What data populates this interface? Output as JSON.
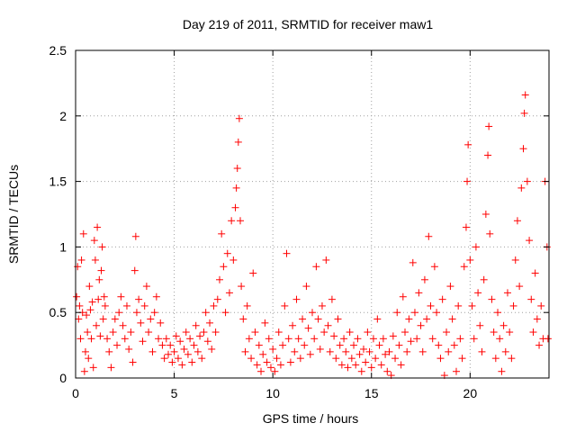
{
  "chart_data": {
    "type": "scatter",
    "title": "Day 219 of 2011, SRMTID for receiver maw1",
    "xlabel": "GPS time / hours",
    "ylabel": "SRMTID / TECUs",
    "xlim": [
      0,
      24
    ],
    "ylim": [
      0,
      2.5
    ],
    "xticks": [
      0,
      5,
      10,
      15,
      20
    ],
    "yticks": [
      0,
      0.5,
      1,
      1.5,
      2,
      2.5
    ],
    "xtick_labels": [
      "0",
      "5",
      "10",
      "15",
      "20"
    ],
    "ytick_labels": [
      "0",
      "0.5",
      "1",
      "1.5",
      "2",
      "2.5"
    ],
    "grid": true,
    "marker": "+",
    "color": "#ff0000",
    "series": [
      {
        "name": "SRMTID",
        "points": [
          [
            0.05,
            0.62
          ],
          [
            0.1,
            0.85
          ],
          [
            0.15,
            0.45
          ],
          [
            0.2,
            0.55
          ],
          [
            0.25,
            0.3
          ],
          [
            0.3,
            0.9
          ],
          [
            0.35,
            0.5
          ],
          [
            0.4,
            1.1
          ],
          [
            0.45,
            0.05
          ],
          [
            0.5,
            0.2
          ],
          [
            0.55,
            0.48
          ],
          [
            0.6,
            0.35
          ],
          [
            0.65,
            0.15
          ],
          [
            0.7,
            0.7
          ],
          [
            0.75,
            0.52
          ],
          [
            0.8,
            0.3
          ],
          [
            0.85,
            0.58
          ],
          [
            0.9,
            0.08
          ],
          [
            0.95,
            1.05
          ],
          [
            1.0,
            0.9
          ],
          [
            1.05,
            0.4
          ],
          [
            1.1,
            1.15
          ],
          [
            1.15,
            0.6
          ],
          [
            1.2,
            0.75
          ],
          [
            1.25,
            0.32
          ],
          [
            1.3,
            0.82
          ],
          [
            1.35,
            1.0
          ],
          [
            1.4,
            0.45
          ],
          [
            1.45,
            0.62
          ],
          [
            1.5,
            0.55
          ],
          [
            1.6,
            0.3
          ],
          [
            1.7,
            0.2
          ],
          [
            1.8,
            0.08
          ],
          [
            1.9,
            0.35
          ],
          [
            2.0,
            0.45
          ],
          [
            2.1,
            0.25
          ],
          [
            2.2,
            0.5
          ],
          [
            2.3,
            0.62
          ],
          [
            2.4,
            0.4
          ],
          [
            2.5,
            0.3
          ],
          [
            2.6,
            0.55
          ],
          [
            2.7,
            0.22
          ],
          [
            2.8,
            0.35
          ],
          [
            2.9,
            0.12
          ],
          [
            3.0,
            0.82
          ],
          [
            3.05,
            1.08
          ],
          [
            3.1,
            0.5
          ],
          [
            3.2,
            0.6
          ],
          [
            3.3,
            0.42
          ],
          [
            3.4,
            0.28
          ],
          [
            3.5,
            0.55
          ],
          [
            3.6,
            0.7
          ],
          [
            3.7,
            0.35
          ],
          [
            3.8,
            0.45
          ],
          [
            3.9,
            0.2
          ],
          [
            4.0,
            0.5
          ],
          [
            4.1,
            0.62
          ],
          [
            4.2,
            0.3
          ],
          [
            4.3,
            0.42
          ],
          [
            4.4,
            0.25
          ],
          [
            4.5,
            0.15
          ],
          [
            4.6,
            0.3
          ],
          [
            4.7,
            0.18
          ],
          [
            4.8,
            0.25
          ],
          [
            4.9,
            0.12
          ],
          [
            5.0,
            0.2
          ],
          [
            5.1,
            0.32
          ],
          [
            5.2,
            0.15
          ],
          [
            5.3,
            0.28
          ],
          [
            5.4,
            0.1
          ],
          [
            5.5,
            0.22
          ],
          [
            5.6,
            0.35
          ],
          [
            5.7,
            0.18
          ],
          [
            5.8,
            0.3
          ],
          [
            5.9,
            0.12
          ],
          [
            6.0,
            0.25
          ],
          [
            6.1,
            0.4
          ],
          [
            6.2,
            0.2
          ],
          [
            6.3,
            0.32
          ],
          [
            6.4,
            0.15
          ],
          [
            6.5,
            0.35
          ],
          [
            6.6,
            0.5
          ],
          [
            6.7,
            0.28
          ],
          [
            6.8,
            0.42
          ],
          [
            6.9,
            0.22
          ],
          [
            7.0,
            0.55
          ],
          [
            7.1,
            0.35
          ],
          [
            7.2,
            0.6
          ],
          [
            7.3,
            0.75
          ],
          [
            7.4,
            1.1
          ],
          [
            7.5,
            0.85
          ],
          [
            7.6,
            0.5
          ],
          [
            7.7,
            0.95
          ],
          [
            7.8,
            0.65
          ],
          [
            7.9,
            1.2
          ],
          [
            8.0,
            0.9
          ],
          [
            8.1,
            1.3
          ],
          [
            8.15,
            1.45
          ],
          [
            8.2,
            1.6
          ],
          [
            8.25,
            1.8
          ],
          [
            8.3,
            1.98
          ],
          [
            8.35,
            1.2
          ],
          [
            8.4,
            0.7
          ],
          [
            8.5,
            0.45
          ],
          [
            8.6,
            0.2
          ],
          [
            8.7,
            0.55
          ],
          [
            8.8,
            0.3
          ],
          [
            8.9,
            0.15
          ],
          [
            9.0,
            0.8
          ],
          [
            9.1,
            0.35
          ],
          [
            9.2,
            0.1
          ],
          [
            9.3,
            0.25
          ],
          [
            9.4,
            0.05
          ],
          [
            9.5,
            0.18
          ],
          [
            9.6,
            0.42
          ],
          [
            9.7,
            0.12
          ],
          [
            9.8,
            0.3
          ],
          [
            9.9,
            0.08
          ],
          [
            10.0,
            0.22
          ],
          [
            10.1,
            0.05
          ],
          [
            10.2,
            0.15
          ],
          [
            10.3,
            0.35
          ],
          [
            10.4,
            0.1
          ],
          [
            10.5,
            0.25
          ],
          [
            10.6,
            0.55
          ],
          [
            10.7,
            0.95
          ],
          [
            10.8,
            0.3
          ],
          [
            10.9,
            0.12
          ],
          [
            11.0,
            0.4
          ],
          [
            11.1,
            0.2
          ],
          [
            11.2,
            0.6
          ],
          [
            11.3,
            0.3
          ],
          [
            11.4,
            0.15
          ],
          [
            11.5,
            0.45
          ],
          [
            11.6,
            0.25
          ],
          [
            11.7,
            0.7
          ],
          [
            11.8,
            0.38
          ],
          [
            11.9,
            0.18
          ],
          [
            12.0,
            0.5
          ],
          [
            12.1,
            0.3
          ],
          [
            12.2,
            0.85
          ],
          [
            12.3,
            0.45
          ],
          [
            12.4,
            0.22
          ],
          [
            12.5,
            0.55
          ],
          [
            12.6,
            0.35
          ],
          [
            12.7,
            0.9
          ],
          [
            12.8,
            0.4
          ],
          [
            12.9,
            0.2
          ],
          [
            13.0,
            0.6
          ],
          [
            13.1,
            0.32
          ],
          [
            13.2,
            0.15
          ],
          [
            13.3,
            0.45
          ],
          [
            13.4,
            0.25
          ],
          [
            13.5,
            0.1
          ],
          [
            13.6,
            0.3
          ],
          [
            13.7,
            0.2
          ],
          [
            13.8,
            0.08
          ],
          [
            13.9,
            0.35
          ],
          [
            14.0,
            0.15
          ],
          [
            14.1,
            0.25
          ],
          [
            14.2,
            0.1
          ],
          [
            14.3,
            0.3
          ],
          [
            14.4,
            0.18
          ],
          [
            14.5,
            0.05
          ],
          [
            14.6,
            0.22
          ],
          [
            14.7,
            0.12
          ],
          [
            14.8,
            0.35
          ],
          [
            14.9,
            0.2
          ],
          [
            15.0,
            0.08
          ],
          [
            15.1,
            0.3
          ],
          [
            15.2,
            0.15
          ],
          [
            15.3,
            0.45
          ],
          [
            15.4,
            0.25
          ],
          [
            15.5,
            0.1
          ],
          [
            15.6,
            0.3
          ],
          [
            15.7,
            0.18
          ],
          [
            15.8,
            0.05
          ],
          [
            15.9,
            0.2
          ],
          [
            16.0,
            0.02
          ],
          [
            16.1,
            0.32
          ],
          [
            16.2,
            0.15
          ],
          [
            16.3,
            0.5
          ],
          [
            16.4,
            0.25
          ],
          [
            16.5,
            0.1
          ],
          [
            16.6,
            0.62
          ],
          [
            16.7,
            0.35
          ],
          [
            16.8,
            0.2
          ],
          [
            16.9,
            0.45
          ],
          [
            17.0,
            0.28
          ],
          [
            17.1,
            0.88
          ],
          [
            17.2,
            0.5
          ],
          [
            17.3,
            0.3
          ],
          [
            17.4,
            0.65
          ],
          [
            17.5,
            0.4
          ],
          [
            17.6,
            0.2
          ],
          [
            17.7,
            0.75
          ],
          [
            17.8,
            0.45
          ],
          [
            17.9,
            1.08
          ],
          [
            18.0,
            0.55
          ],
          [
            18.1,
            0.3
          ],
          [
            18.2,
            0.85
          ],
          [
            18.3,
            0.5
          ],
          [
            18.4,
            0.25
          ],
          [
            18.5,
            0.15
          ],
          [
            18.6,
            0.6
          ],
          [
            18.7,
            0.02
          ],
          [
            18.8,
            0.35
          ],
          [
            18.9,
            0.2
          ],
          [
            19.0,
            0.7
          ],
          [
            19.1,
            0.45
          ],
          [
            19.2,
            0.25
          ],
          [
            19.3,
            0.05
          ],
          [
            19.4,
            0.55
          ],
          [
            19.5,
            0.3
          ],
          [
            19.6,
            0.15
          ],
          [
            19.7,
            0.85
          ],
          [
            19.8,
            1.15
          ],
          [
            19.85,
            1.5
          ],
          [
            19.9,
            1.78
          ],
          [
            20.0,
            0.9
          ],
          [
            20.1,
            0.55
          ],
          [
            20.2,
            0.3
          ],
          [
            20.3,
            1.0
          ],
          [
            20.4,
            0.65
          ],
          [
            20.5,
            0.4
          ],
          [
            20.6,
            0.2
          ],
          [
            20.7,
            0.75
          ],
          [
            20.8,
            1.25
          ],
          [
            20.9,
            1.7
          ],
          [
            20.95,
            1.92
          ],
          [
            21.0,
            1.1
          ],
          [
            21.1,
            0.6
          ],
          [
            21.2,
            0.35
          ],
          [
            21.3,
            0.15
          ],
          [
            21.4,
            0.5
          ],
          [
            21.5,
            0.3
          ],
          [
            21.6,
            0.05
          ],
          [
            21.7,
            0.4
          ],
          [
            21.8,
            0.2
          ],
          [
            21.9,
            0.65
          ],
          [
            22.0,
            0.35
          ],
          [
            22.1,
            0.15
          ],
          [
            22.2,
            0.55
          ],
          [
            22.3,
            0.9
          ],
          [
            22.4,
            1.2
          ],
          [
            22.5,
            0.7
          ],
          [
            22.6,
            1.45
          ],
          [
            22.7,
            1.75
          ],
          [
            22.75,
            2.02
          ],
          [
            22.8,
            2.16
          ],
          [
            22.9,
            1.5
          ],
          [
            23.0,
            1.05
          ],
          [
            23.1,
            0.6
          ],
          [
            23.2,
            0.35
          ],
          [
            23.3,
            0.8
          ],
          [
            23.4,
            0.45
          ],
          [
            23.5,
            0.25
          ],
          [
            23.6,
            0.55
          ],
          [
            23.7,
            0.3
          ],
          [
            23.8,
            1.5
          ],
          [
            23.9,
            1.0
          ],
          [
            23.95,
            0.3
          ]
        ]
      }
    ]
  }
}
